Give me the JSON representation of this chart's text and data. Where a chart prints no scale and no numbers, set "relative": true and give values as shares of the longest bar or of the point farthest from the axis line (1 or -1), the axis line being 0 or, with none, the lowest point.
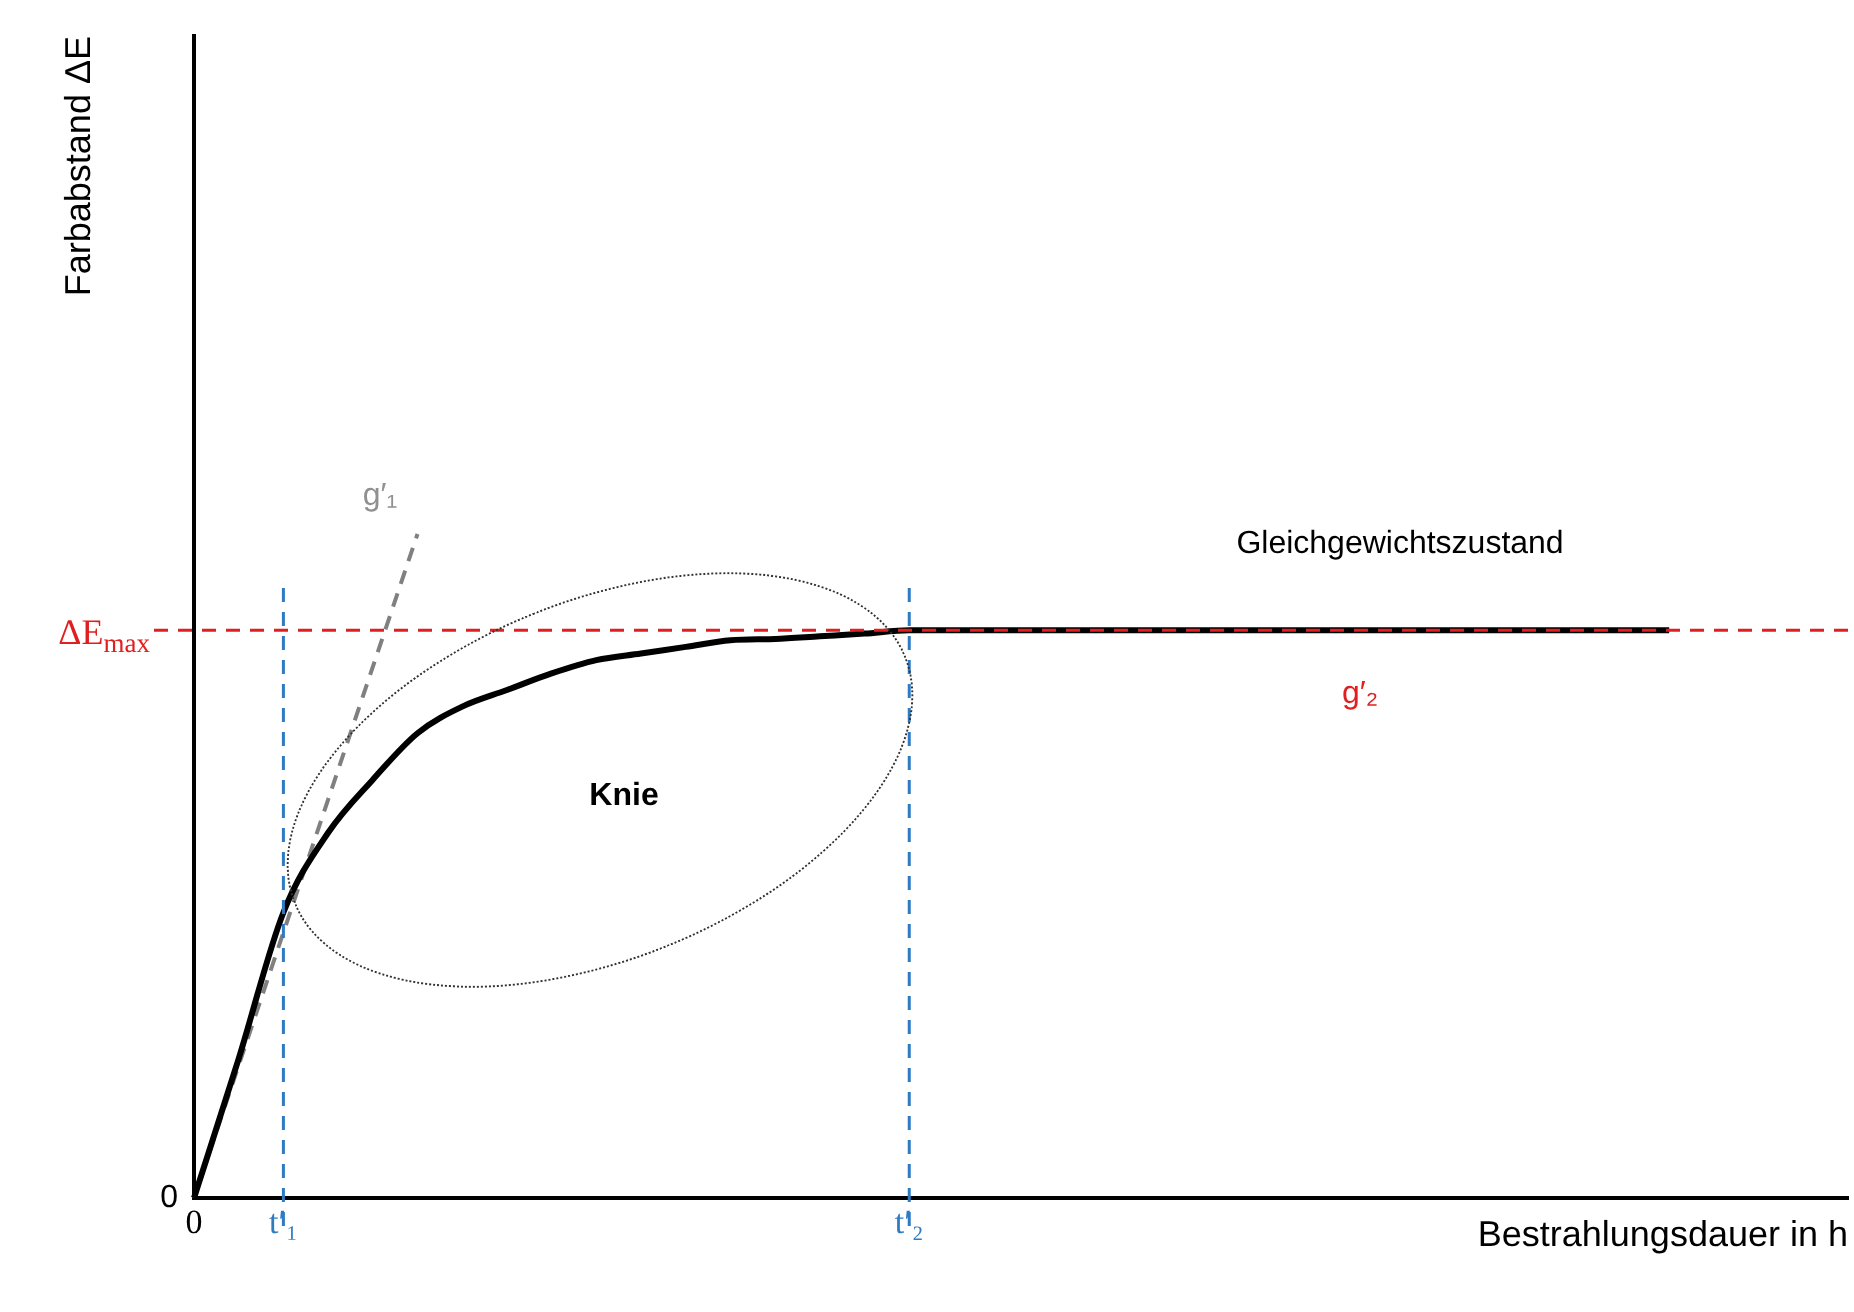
{
  "chart_data": {
    "type": "line",
    "relative": true,
    "xlabel": "Bestrahlungsdauer in h",
    "categories": [
      "0",
      null,
      "t′₁",
      null,
      null,
      null,
      null,
      null,
      null,
      null,
      null,
      null,
      null,
      null,
      null,
      null,
      "t′₂",
      null,
      null,
      null,
      null,
      null,
      null,
      null,
      null,
      null,
      null,
      null,
      null,
      null,
      null,
      null,
      null,
      null,
      null,
      null,
      null,
      null
    ],
    "series": [
      {
        "color": "#000000",
        "line_style": "solid",
        "values": [
          0,
          0.21,
          0.43,
          0.55,
          0.63,
          0.7,
          0.74,
          0.765,
          0.79,
          0.81,
          0.82,
          0.83,
          0.84,
          0.842,
          0.846,
          0.85,
          0.855,
          0.855,
          0.855,
          0.855,
          0.855,
          0.855,
          0.855,
          0.855,
          0.855,
          0.855,
          0.855,
          0.855,
          0.855,
          0.855,
          0.855,
          0.855,
          0.855,
          0.855,
          null,
          null,
          null,
          null
        ]
      },
      {
        "color": "#808080",
        "line_style": "dashed",
        "values": [
          0,
          null,
          null,
          null,
          null,
          1,
          null,
          null,
          null,
          null,
          null,
          null,
          null,
          null,
          null,
          null,
          null,
          null,
          null,
          null,
          null,
          null,
          null,
          null,
          null,
          null,
          null,
          null,
          null,
          null,
          null,
          null,
          null,
          null,
          null,
          null,
          null,
          null
        ]
      }
    ],
    "ref_lines": [
      {
        "axis": "y",
        "value": 0.855,
        "label": "ΔE$_{max}$",
        "color": "#e02020",
        "line_style": "dashed"
      },
      {
        "axis": "x",
        "value": "t′₁",
        "color": "#2e7bc4",
        "line_style": "dashed"
      },
      {
        "axis": "x",
        "value": "t′₂",
        "color": "#2e7bc4",
        "line_style": "dashed"
      }
    ],
    "annotations": [
      "0",
      "g′₁",
      "Gleichgewichtszustand",
      "g′₂",
      "Knie",
      "Farbabstand ΔE"
    ],
    "grid": false,
    "legend": false
  }
}
